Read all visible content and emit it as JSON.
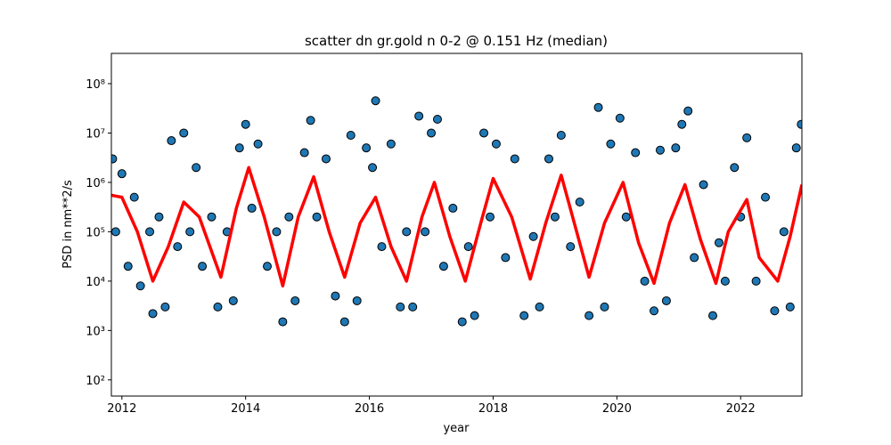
{
  "chart_data": {
    "type": "scatter",
    "title": "scatter dn gr.gold n 0-2 @ 0.151 Hz (median)",
    "xlabel": "year",
    "ylabel": "PSD in nm**2/s",
    "xlim": [
      2011.83,
      2022.99
    ],
    "xticks": [
      2012,
      2014,
      2016,
      2018,
      2020,
      2022
    ],
    "ylim": [
      47,
      410000000
    ],
    "ylog": true,
    "yticks": [
      {
        "value": 100,
        "label": "10²"
      },
      {
        "value": 1000,
        "label": "10³"
      },
      {
        "value": 10000,
        "label": "10⁴"
      },
      {
        "value": 100000,
        "label": "10⁵"
      },
      {
        "value": 1000000,
        "label": "10⁶"
      },
      {
        "value": 10000000,
        "label": "10⁷"
      },
      {
        "value": 100000000,
        "label": "10⁸"
      }
    ],
    "series": [
      {
        "color": "#1f77b4",
        "edgecolor": "#000000",
        "kind": "scatter",
        "x": [
          2011.85,
          2011.9,
          2012.0,
          2012.1,
          2012.2,
          2012.3,
          2012.45,
          2012.5,
          2012.6,
          2012.7,
          2012.8,
          2012.9,
          2013.0,
          2013.1,
          2013.2,
          2013.3,
          2013.45,
          2013.55,
          2013.7,
          2013.8,
          2013.9,
          2014.0,
          2014.1,
          2014.2,
          2014.35,
          2014.5,
          2014.6,
          2014.7,
          2014.8,
          2014.95,
          2015.05,
          2015.15,
          2015.3,
          2015.45,
          2015.6,
          2015.7,
          2015.8,
          2015.95,
          2016.05,
          2016.1,
          2016.2,
          2016.35,
          2016.5,
          2016.6,
          2016.7,
          2016.8,
          2016.9,
          2017.0,
          2017.1,
          2017.2,
          2017.35,
          2017.5,
          2017.6,
          2017.7,
          2017.85,
          2017.95,
          2018.05,
          2018.2,
          2018.35,
          2018.5,
          2018.65,
          2018.75,
          2018.9,
          2019.0,
          2019.1,
          2019.25,
          2019.4,
          2019.55,
          2019.7,
          2019.8,
          2019.9,
          2020.05,
          2020.15,
          2020.3,
          2020.45,
          2020.6,
          2020.7,
          2020.8,
          2020.95,
          2021.05,
          2021.15,
          2021.25,
          2021.4,
          2021.55,
          2021.65,
          2021.75,
          2021.9,
          2022.0,
          2022.1,
          2022.25,
          2022.4,
          2022.55,
          2022.7,
          2022.8,
          2022.9,
          2022.98
        ],
        "values": [
          3000000,
          100000,
          1500000,
          20000,
          500000,
          8000,
          100000,
          2200,
          200000,
          3000,
          7000000,
          50000,
          10000000,
          100000,
          2000000,
          20000,
          200000,
          3000,
          100000,
          4000,
          5000000,
          15000000,
          300000,
          6000000,
          20000,
          100000,
          1500,
          200000,
          4000,
          4000000,
          18000000,
          200000,
          3000000,
          5000,
          1500,
          9000000,
          4000,
          5000000,
          2000000,
          45000000,
          50000,
          6000000,
          3000,
          100000,
          3000,
          22000000,
          100000,
          10000000,
          19000000,
          20000,
          300000,
          1500,
          50000,
          2000,
          10000000,
          200000,
          6000000,
          30000,
          3000000,
          2000,
          80000,
          3000,
          3000000,
          200000,
          9000000,
          50000,
          400000,
          2000,
          33000000,
          3000,
          6000000,
          20000000,
          200000,
          4000000,
          10000,
          2500,
          4500000,
          4000,
          5000000,
          15000000,
          28000000,
          30000,
          900000,
          2000,
          60000,
          10000,
          2000000,
          200000,
          8000000,
          10000,
          500000,
          2500,
          100000,
          3000,
          5000000,
          15000000
        ]
      },
      {
        "color": "#ff0000",
        "kind": "line",
        "x": [
          2011.83,
          2012.0,
          2012.25,
          2012.5,
          2012.75,
          2013.0,
          2013.25,
          2013.6,
          2013.85,
          2014.05,
          2014.3,
          2014.6,
          2014.85,
          2015.1,
          2015.35,
          2015.6,
          2015.85,
          2016.1,
          2016.35,
          2016.6,
          2016.85,
          2017.05,
          2017.3,
          2017.55,
          2017.8,
          2018.0,
          2018.3,
          2018.6,
          2018.85,
          2019.1,
          2019.35,
          2019.55,
          2019.8,
          2020.1,
          2020.35,
          2020.6,
          2020.85,
          2021.1,
          2021.35,
          2021.6,
          2021.8,
          2022.1,
          2022.3,
          2022.6,
          2022.8,
          2022.99
        ],
        "values": [
          550000,
          500000,
          100000,
          10000,
          50000,
          400000,
          200000,
          12000,
          300000,
          2000000,
          200000,
          8000,
          200000,
          1300000,
          100000,
          12000,
          150000,
          500000,
          50000,
          10000,
          200000,
          1000000,
          80000,
          10000,
          150000,
          1200000,
          200000,
          11000,
          150000,
          1400000,
          100000,
          12000,
          150000,
          1000000,
          60000,
          9000,
          150000,
          900000,
          70000,
          9000,
          100000,
          450000,
          30000,
          10000,
          80000,
          900000
        ]
      }
    ]
  }
}
